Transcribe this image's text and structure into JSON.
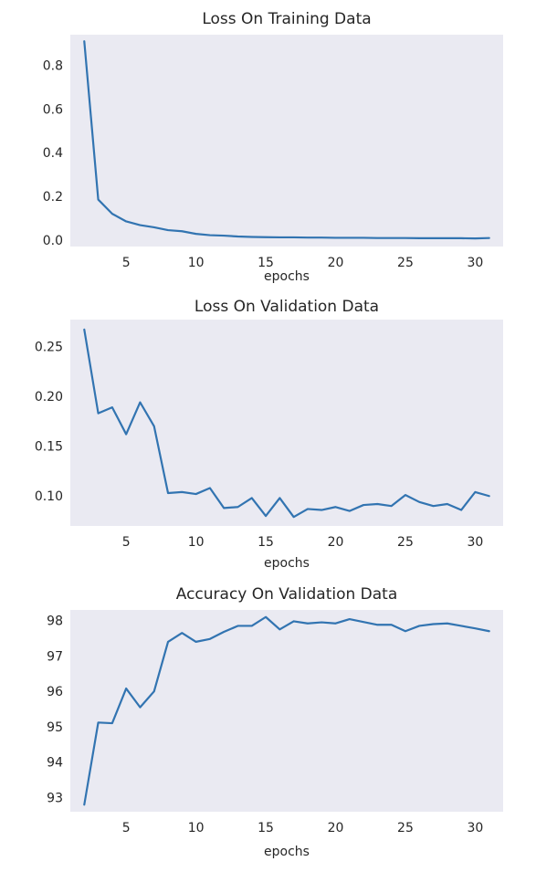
{
  "chart_data": [
    {
      "type": "line",
      "title": "Loss On Training Data",
      "xlabel": "epochs",
      "ylabel": "",
      "xlim": [
        1,
        32
      ],
      "ylim": [
        -0.03,
        0.94
      ],
      "xticks": [
        5,
        10,
        15,
        20,
        25,
        30
      ],
      "xtick_labels": [
        "5",
        "10",
        "15",
        "20",
        "25",
        "30"
      ],
      "yticks": [
        0.0,
        0.2,
        0.4,
        0.6,
        0.8
      ],
      "ytick_labels": [
        "0.0",
        "0.2",
        "0.4",
        "0.6",
        "0.8"
      ],
      "grid": false,
      "background": "#eaeaf2",
      "line_color": "#3274b1",
      "series": [
        {
          "x": [
            2,
            3,
            4,
            5,
            6,
            7,
            8,
            9,
            10,
            11,
            12,
            13,
            14,
            15,
            16,
            17,
            18,
            19,
            20,
            21,
            22,
            23,
            24,
            25,
            26,
            27,
            28,
            29,
            30,
            31
          ],
          "values": [
            0.91,
            0.185,
            0.12,
            0.085,
            0.068,
            0.058,
            0.045,
            0.04,
            0.028,
            0.022,
            0.02,
            0.016,
            0.014,
            0.013,
            0.012,
            0.012,
            0.011,
            0.011,
            0.01,
            0.01,
            0.01,
            0.009,
            0.009,
            0.009,
            0.008,
            0.008,
            0.008,
            0.008,
            0.007,
            0.009
          ]
        }
      ]
    },
    {
      "type": "line",
      "title": "Loss On Validation Data",
      "xlabel": "epochs",
      "ylabel": "",
      "xlim": [
        1,
        32
      ],
      "ylim": [
        0.07,
        0.277
      ],
      "xticks": [
        5,
        10,
        15,
        20,
        25,
        30
      ],
      "xtick_labels": [
        "5",
        "10",
        "15",
        "20",
        "25",
        "30"
      ],
      "yticks": [
        0.1,
        0.15,
        0.2,
        0.25
      ],
      "ytick_labels": [
        "0.10",
        "0.15",
        "0.20",
        "0.25"
      ],
      "grid": false,
      "background": "#eaeaf2",
      "line_color": "#3274b1",
      "series": [
        {
          "x": [
            2,
            3,
            4,
            5,
            6,
            7,
            8,
            9,
            10,
            11,
            12,
            13,
            14,
            15,
            16,
            17,
            18,
            19,
            20,
            21,
            22,
            23,
            24,
            25,
            26,
            27,
            28,
            29,
            30,
            31
          ],
          "values": [
            0.267,
            0.183,
            0.189,
            0.162,
            0.194,
            0.17,
            0.103,
            0.104,
            0.102,
            0.108,
            0.088,
            0.089,
            0.098,
            0.08,
            0.098,
            0.079,
            0.087,
            0.086,
            0.089,
            0.085,
            0.091,
            0.092,
            0.09,
            0.101,
            0.094,
            0.09,
            0.092,
            0.086,
            0.104,
            0.1
          ]
        }
      ]
    },
    {
      "type": "line",
      "title": "Accuracy On Validation Data",
      "xlabel": "epochs",
      "ylabel": "",
      "xlim": [
        1,
        32
      ],
      "ylim": [
        92.6,
        98.3
      ],
      "xticks": [
        5,
        10,
        15,
        20,
        25,
        30
      ],
      "xtick_labels": [
        "5",
        "10",
        "15",
        "20",
        "25",
        "30"
      ],
      "yticks": [
        93,
        94,
        95,
        96,
        97,
        98
      ],
      "ytick_labels": [
        "93",
        "94",
        "95",
        "96",
        "97",
        "98"
      ],
      "grid": false,
      "background": "#eaeaf2",
      "line_color": "#3274b1",
      "series": [
        {
          "x": [
            2,
            3,
            4,
            5,
            6,
            7,
            8,
            9,
            10,
            11,
            12,
            13,
            14,
            15,
            16,
            17,
            18,
            19,
            20,
            21,
            22,
            23,
            24,
            25,
            26,
            27,
            28,
            29,
            30,
            31
          ],
          "values": [
            92.8,
            95.12,
            95.1,
            96.08,
            95.55,
            96.0,
            97.4,
            97.65,
            97.4,
            97.48,
            97.68,
            97.85,
            97.85,
            98.1,
            97.75,
            97.98,
            97.92,
            97.95,
            97.92,
            98.04,
            97.96,
            97.88,
            97.88,
            97.7,
            97.85,
            97.9,
            97.92,
            97.85,
            97.78,
            97.7
          ]
        }
      ]
    }
  ]
}
